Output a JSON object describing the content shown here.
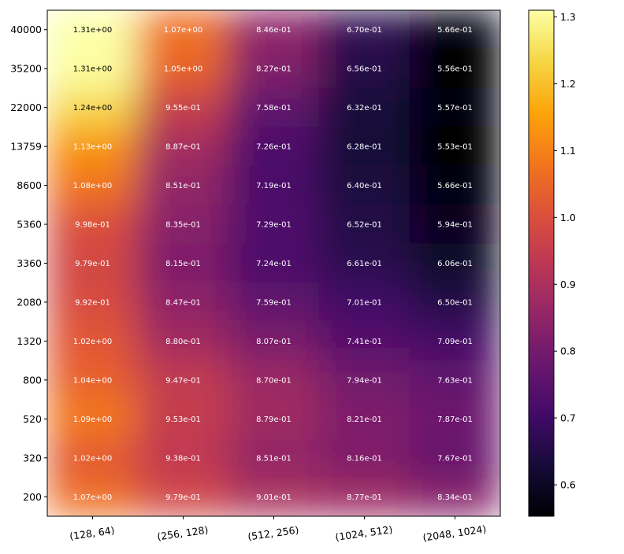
{
  "chart_data": {
    "type": "heatmap",
    "title": "",
    "xlabel": "",
    "ylabel": "",
    "x_categories": [
      "(128, 64)",
      "(256, 128)",
      "(512, 256)",
      "(1024, 512)",
      "(2048, 1024)"
    ],
    "y_categories": [
      "40000",
      "35200",
      "22000",
      "13759",
      "8600",
      "5360",
      "3360",
      "2080",
      "1320",
      "800",
      "520",
      "320",
      "200"
    ],
    "values": [
      [
        1.31,
        1.07,
        0.846,
        0.67,
        0.566
      ],
      [
        1.31,
        1.05,
        0.827,
        0.656,
        0.556
      ],
      [
        1.24,
        0.955,
        0.758,
        0.632,
        0.557
      ],
      [
        1.13,
        0.887,
        0.726,
        0.628,
        0.553
      ],
      [
        1.08,
        0.851,
        0.719,
        0.64,
        0.566
      ],
      [
        0.998,
        0.835,
        0.729,
        0.652,
        0.594
      ],
      [
        0.979,
        0.815,
        0.724,
        0.661,
        0.606
      ],
      [
        0.992,
        0.847,
        0.759,
        0.701,
        0.65
      ],
      [
        1.02,
        0.88,
        0.807,
        0.741,
        0.709
      ],
      [
        1.04,
        0.947,
        0.87,
        0.794,
        0.763
      ],
      [
        1.09,
        0.953,
        0.879,
        0.821,
        0.787
      ],
      [
        1.02,
        0.938,
        0.851,
        0.816,
        0.767
      ],
      [
        1.07,
        0.979,
        0.901,
        0.877,
        0.834
      ]
    ],
    "labels": [
      [
        "1.31e+00",
        "1.07e+00",
        "8.46e-01",
        "6.70e-01",
        "5.66e-01"
      ],
      [
        "1.31e+00",
        "1.05e+00",
        "8.27e-01",
        "6.56e-01",
        "5.56e-01"
      ],
      [
        "1.24e+00",
        "9.55e-01",
        "7.58e-01",
        "6.32e-01",
        "5.57e-01"
      ],
      [
        "1.13e+00",
        "8.87e-01",
        "7.26e-01",
        "6.28e-01",
        "5.53e-01"
      ],
      [
        "1.08e+00",
        "8.51e-01",
        "7.19e-01",
        "6.40e-01",
        "5.66e-01"
      ],
      [
        "9.98e-01",
        "8.35e-01",
        "7.29e-01",
        "6.52e-01",
        "5.94e-01"
      ],
      [
        "9.79e-01",
        "8.15e-01",
        "7.24e-01",
        "6.61e-01",
        "6.06e-01"
      ],
      [
        "9.92e-01",
        "8.47e-01",
        "7.59e-01",
        "7.01e-01",
        "6.50e-01"
      ],
      [
        "1.02e+00",
        "8.80e-01",
        "8.07e-01",
        "7.41e-01",
        "7.09e-01"
      ],
      [
        "1.04e+00",
        "9.47e-01",
        "8.70e-01",
        "7.94e-01",
        "7.63e-01"
      ],
      [
        "1.09e+00",
        "9.53e-01",
        "8.79e-01",
        "8.21e-01",
        "7.87e-01"
      ],
      [
        "1.02e+00",
        "9.38e-01",
        "8.51e-01",
        "8.16e-01",
        "7.67e-01"
      ],
      [
        "1.07e+00",
        "9.79e-01",
        "9.01e-01",
        "8.77e-01",
        "8.34e-01"
      ]
    ],
    "colormap": "inferno",
    "color_range": [
      0.553,
      1.31
    ],
    "colorbar_ticks": [
      "0.6",
      "0.7",
      "0.8",
      "0.9",
      "1.0",
      "1.1",
      "1.2",
      "1.3"
    ],
    "colorbar_tick_values": [
      0.6,
      0.7,
      0.8,
      0.9,
      1.0,
      1.1,
      1.2,
      1.3
    ]
  }
}
